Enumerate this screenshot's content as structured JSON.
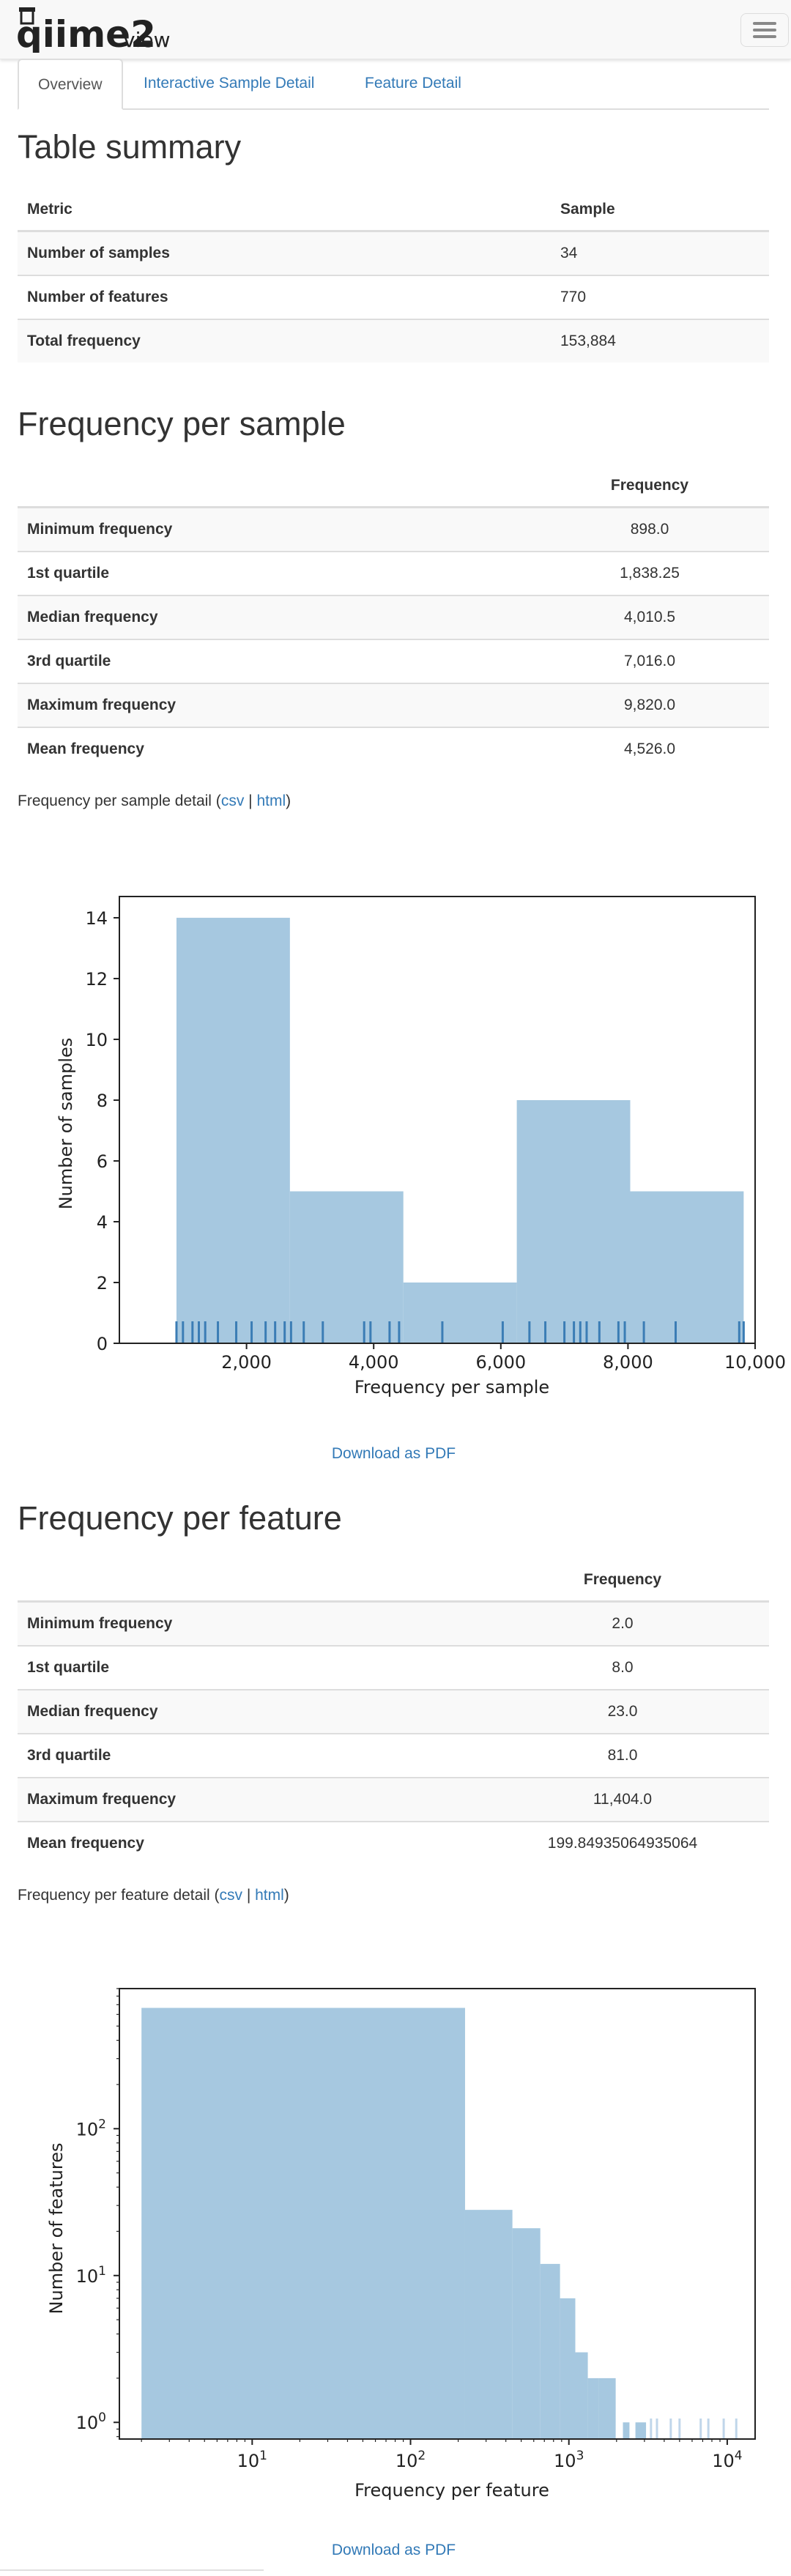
{
  "app": {
    "logo_main": "qiime2",
    "logo_sub": "view"
  },
  "tabs": [
    {
      "label": "Overview"
    },
    {
      "label": "Interactive Sample Detail"
    },
    {
      "label": "Feature Detail"
    }
  ],
  "table_summary": {
    "title": "Table summary",
    "headers": [
      "Metric",
      "Sample"
    ],
    "rows": [
      {
        "metric": "Number of samples",
        "value": "34"
      },
      {
        "metric": "Number of features",
        "value": "770"
      },
      {
        "metric": "Total frequency",
        "value": "153,884"
      }
    ]
  },
  "freq_sample": {
    "title": "Frequency per sample",
    "header": "Frequency",
    "rows": [
      {
        "label": "Minimum frequency",
        "value": "898.0"
      },
      {
        "label": "1st quartile",
        "value": "1,838.25"
      },
      {
        "label": "Median frequency",
        "value": "4,010.5"
      },
      {
        "label": "3rd quartile",
        "value": "7,016.0"
      },
      {
        "label": "Maximum frequency",
        "value": "9,820.0"
      },
      {
        "label": "Mean frequency",
        "value": "4,526.0"
      }
    ],
    "detail_text": "Frequency per sample detail (",
    "csv": "csv",
    "sep": " | ",
    "html": "html",
    "close": ")",
    "download": "Download as PDF"
  },
  "freq_feature": {
    "title": "Frequency per feature",
    "header": "Frequency",
    "rows": [
      {
        "label": "Minimum frequency",
        "value": "2.0"
      },
      {
        "label": "1st quartile",
        "value": "8.0"
      },
      {
        "label": "Median frequency",
        "value": "23.0"
      },
      {
        "label": "3rd quartile",
        "value": "81.0"
      },
      {
        "label": "Maximum frequency",
        "value": "11,404.0"
      },
      {
        "label": "Mean frequency",
        "value": "199.84935064935064"
      }
    ],
    "detail_text": "Frequency per feature detail (",
    "csv": "csv",
    "sep": " | ",
    "html": "html",
    "close": ")",
    "download": "Download as PDF"
  },
  "chart_data": [
    {
      "type": "bar",
      "xlabel": "Frequency per sample",
      "ylabel": "Number of samples",
      "xlim": [
        0,
        10000
      ],
      "ylim": [
        0,
        14.7
      ],
      "x_ticks": [
        2000,
        4000,
        6000,
        8000,
        10000
      ],
      "x_tick_labels": [
        "2,000",
        "4,000",
        "6,000",
        "8,000",
        "10,000"
      ],
      "y_ticks": [
        0,
        2,
        4,
        6,
        8,
        10,
        12,
        14
      ],
      "y_tick_labels": [
        "0",
        "2",
        "4",
        "6",
        "8",
        "10",
        "12",
        "14"
      ],
      "bins": [
        {
          "x0": 898,
          "x1": 2682.4,
          "count": 14
        },
        {
          "x0": 2682.4,
          "x1": 4466.8,
          "count": 5
        },
        {
          "x0": 4466.8,
          "x1": 6251.2,
          "count": 2
        },
        {
          "x0": 6251.2,
          "x1": 8035.6,
          "count": 8
        },
        {
          "x0": 8035.6,
          "x1": 9820,
          "count": 5
        }
      ],
      "rug": [
        898,
        1000,
        1150,
        1250,
        1350,
        1550,
        1838,
        2080,
        2300,
        2450,
        2600,
        2700,
        2900,
        3200,
        3850,
        3950,
        4250,
        4400,
        5080,
        6030,
        6450,
        6700,
        7000,
        7150,
        7250,
        7350,
        7550,
        7850,
        7950,
        8250,
        8750,
        9750,
        9820
      ],
      "color": "#a6c8e0",
      "rug_color": "#3b7db5"
    },
    {
      "type": "bar",
      "xlabel": "Frequency per feature",
      "ylabel": "Number of features",
      "x_scale": "log",
      "y_scale": "log",
      "xlim": [
        1.45,
        15000
      ],
      "ylim": [
        0.77,
        900
      ],
      "x_ticks": [
        10,
        100,
        1000,
        10000
      ],
      "y_ticks": [
        1,
        10,
        100
      ],
      "bins": [
        {
          "x0": 2,
          "x1": 221,
          "count": 665
        },
        {
          "x0": 221,
          "x1": 440,
          "count": 28
        },
        {
          "x0": 440,
          "x1": 660,
          "count": 21
        },
        {
          "x0": 660,
          "x1": 879,
          "count": 12
        },
        {
          "x0": 879,
          "x1": 1098,
          "count": 7
        },
        {
          "x0": 1098,
          "x1": 1317,
          "count": 3
        },
        {
          "x0": 1317,
          "x1": 1537,
          "count": 2
        },
        {
          "x0": 1537,
          "x1": 1975,
          "count": 2
        },
        {
          "x0": 2194,
          "x1": 2413,
          "count": 1
        },
        {
          "x0": 2632,
          "x1": 3071,
          "count": 1
        }
      ],
      "rug": [
        3300,
        3600,
        4400,
        5000,
        6800,
        7600,
        9500,
        11404
      ],
      "color": "#a6c8e0",
      "rug_color": "#c0d6ea"
    }
  ]
}
